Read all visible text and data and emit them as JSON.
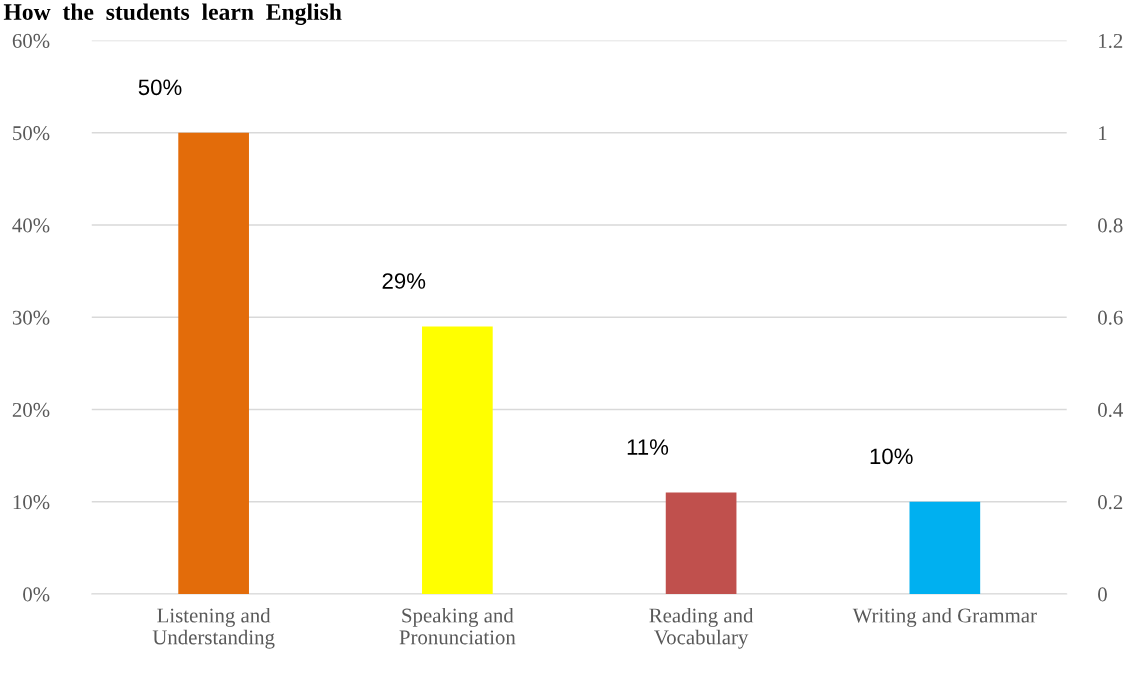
{
  "chart_data": {
    "type": "bar",
    "title": "How  the  students  learn  English",
    "categories": [
      "Listening and\nUnderstanding",
      "Speaking and\nPronunciation",
      "Reading and\nVocabulary",
      "Writing and Grammar"
    ],
    "values": [
      50,
      29,
      11,
      10
    ],
    "colors": [
      "#e36c0a",
      "#ffff00",
      "#c0504d",
      "#00b0f0"
    ],
    "value_labels": [
      "50%",
      "29%",
      "11%",
      "10%"
    ],
    "ylim": [
      0,
      60
    ],
    "yticks": [
      {
        "value": 0,
        "label": "0%"
      },
      {
        "value": 10,
        "label": "10%"
      },
      {
        "value": 20,
        "label": "20%"
      },
      {
        "value": 30,
        "label": "30%"
      },
      {
        "value": 40,
        "label": "40%"
      },
      {
        "value": 50,
        "label": "50%"
      },
      {
        "value": 60,
        "label": "60%"
      }
    ],
    "y2lim": [
      0,
      1.2
    ],
    "y2ticks": [
      0,
      0.2,
      0.4,
      0.6,
      0.8,
      1,
      1.2
    ],
    "grid": "y",
    "legend": false
  }
}
